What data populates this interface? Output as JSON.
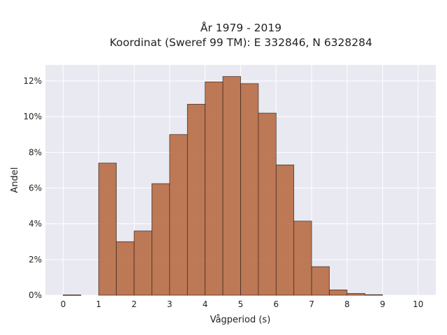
{
  "chart_data": {
    "type": "bar",
    "title_line1": "År 1979 - 2019",
    "title_line2": "Koordinat (Sweref 99 TM): E 332846, N 6328284",
    "xlabel": "Vågperiod (s)",
    "ylabel": "Andel",
    "bin_width": 0.5,
    "bin_starts": [
      0,
      0.5,
      1,
      1.5,
      2,
      2.5,
      3,
      3.5,
      4,
      4.5,
      5,
      5.5,
      6,
      6.5,
      7,
      7.5,
      8,
      8.5,
      9,
      9.5
    ],
    "values": [
      0.02,
      0.0,
      7.4,
      3.0,
      3.6,
      6.25,
      9.0,
      10.7,
      11.95,
      12.25,
      11.85,
      10.2,
      7.3,
      4.15,
      1.6,
      0.3,
      0.1,
      0.03,
      0.0,
      0.0
    ],
    "xlim": [
      -0.5,
      10.5
    ],
    "ylim": [
      0,
      12.9
    ],
    "x_ticks": [
      0,
      1,
      2,
      3,
      4,
      5,
      6,
      7,
      8,
      9,
      10
    ],
    "x_tick_labels": [
      "0",
      "1",
      "2",
      "3",
      "4",
      "5",
      "6",
      "7",
      "8",
      "9",
      "10"
    ],
    "y_ticks": [
      0,
      2,
      4,
      6,
      8,
      10,
      12
    ],
    "y_tick_labels": [
      "0%",
      "2%",
      "4%",
      "6%",
      "8%",
      "10%",
      "12%"
    ],
    "grid": true,
    "colors": {
      "bar_fill": "#b5643a",
      "bar_stroke": "#3a2a22",
      "plot_bg": "#e9e9f2",
      "grid": "#ffffff"
    }
  }
}
